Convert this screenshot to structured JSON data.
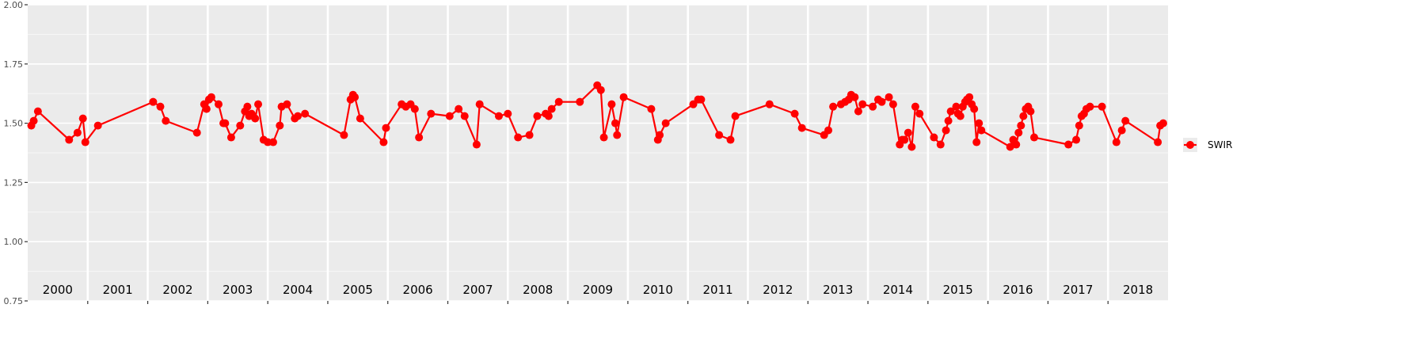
{
  "chart_data": {
    "type": "line",
    "xlabel": "",
    "ylabel": "",
    "ylim": [
      0.75,
      2.0
    ],
    "yticks": [
      "0.75",
      "1.00",
      "1.25",
      "1.50",
      "1.75",
      "2.00"
    ],
    "xlim": [
      2000.0,
      2019.0
    ],
    "grid": true,
    "legend_position": "right",
    "years": [
      "2000",
      "2001",
      "2002",
      "2003",
      "2004",
      "2005",
      "2006",
      "2007",
      "2008",
      "2009",
      "2010",
      "2011",
      "2012",
      "2013",
      "2014",
      "2015",
      "2016",
      "2017",
      "2018"
    ],
    "series": [
      {
        "name": "SWIR",
        "color": "#ff0000",
        "x": [
          2000.06,
          2000.1,
          2000.17,
          2000.69,
          2000.83,
          2000.92,
          2000.96,
          2001.17,
          2002.09,
          2002.21,
          2002.3,
          2002.82,
          2002.94,
          2002.98,
          2003.02,
          2003.06,
          2003.18,
          2003.26,
          2003.29,
          2003.39,
          2003.54,
          2003.62,
          2003.66,
          2003.69,
          2003.73,
          2003.79,
          2003.84,
          2003.93,
          2004.0,
          2004.09,
          2004.2,
          2004.23,
          2004.32,
          2004.45,
          2004.5,
          2004.62,
          2005.27,
          2005.38,
          2005.42,
          2005.45,
          2005.54,
          2005.93,
          2005.97,
          2006.23,
          2006.3,
          2006.38,
          2006.45,
          2006.52,
          2006.72,
          2007.03,
          2007.18,
          2007.28,
          2007.48,
          2007.53,
          2007.85,
          2008.0,
          2008.17,
          2008.36,
          2008.49,
          2008.63,
          2008.68,
          2008.73,
          2008.85,
          2009.2,
          2009.49,
          2009.55,
          2009.6,
          2009.73,
          2009.79,
          2009.82,
          2009.93,
          2010.39,
          2010.5,
          2010.53,
          2010.63,
          2011.09,
          2011.17,
          2011.22,
          2011.52,
          2011.71,
          2011.79,
          2012.36,
          2012.78,
          2012.9,
          2013.27,
          2013.34,
          2013.42,
          2013.55,
          2013.62,
          2013.68,
          2013.72,
          2013.78,
          2013.84,
          2013.91,
          2014.08,
          2014.17,
          2014.23,
          2014.35,
          2014.42,
          2014.53,
          2014.57,
          2014.61,
          2014.67,
          2014.73,
          2014.79,
          2014.86,
          2015.1,
          2015.21,
          2015.3,
          2015.34,
          2015.38,
          2015.47,
          2015.5,
          2015.54,
          2015.58,
          2015.62,
          2015.65,
          2015.69,
          2015.73,
          2015.77,
          2015.81,
          2015.85,
          2015.89,
          2016.37,
          2016.42,
          2016.47,
          2016.51,
          2016.55,
          2016.59,
          2016.63,
          2016.67,
          2016.71,
          2016.77,
          2017.34,
          2017.47,
          2017.52,
          2017.56,
          2017.6,
          2017.64,
          2017.7,
          2017.9,
          2018.14,
          2018.23,
          2018.29,
          2018.83,
          2018.87,
          2018.92
        ],
        "y": [
          1.49,
          1.51,
          1.55,
          1.43,
          1.46,
          1.52,
          1.42,
          1.49,
          1.59,
          1.57,
          1.51,
          1.46,
          1.58,
          1.56,
          1.6,
          1.61,
          1.58,
          1.5,
          1.5,
          1.44,
          1.49,
          1.55,
          1.57,
          1.53,
          1.54,
          1.52,
          1.58,
          1.43,
          1.42,
          1.42,
          1.49,
          1.57,
          1.58,
          1.52,
          1.53,
          1.54,
          1.45,
          1.6,
          1.62,
          1.61,
          1.52,
          1.42,
          1.48,
          1.58,
          1.57,
          1.58,
          1.56,
          1.44,
          1.54,
          1.53,
          1.56,
          1.53,
          1.41,
          1.58,
          1.53,
          1.54,
          1.44,
          1.45,
          1.53,
          1.54,
          1.53,
          1.56,
          1.59,
          1.59,
          1.66,
          1.64,
          1.44,
          1.58,
          1.5,
          1.45,
          1.61,
          1.56,
          1.43,
          1.45,
          1.5,
          1.58,
          1.6,
          1.6,
          1.45,
          1.43,
          1.53,
          1.58,
          1.54,
          1.48,
          1.45,
          1.47,
          1.57,
          1.58,
          1.59,
          1.6,
          1.62,
          1.61,
          1.55,
          1.58,
          1.57,
          1.6,
          1.59,
          1.61,
          1.58,
          1.41,
          1.43,
          1.43,
          1.46,
          1.4,
          1.57,
          1.54,
          1.44,
          1.41,
          1.47,
          1.51,
          1.55,
          1.57,
          1.54,
          1.53,
          1.57,
          1.59,
          1.6,
          1.61,
          1.58,
          1.56,
          1.42,
          1.5,
          1.47,
          1.4,
          1.43,
          1.41,
          1.46,
          1.49,
          1.53,
          1.56,
          1.57,
          1.55,
          1.44,
          1.41,
          1.43,
          1.49,
          1.53,
          1.54,
          1.56,
          1.57,
          1.57,
          1.42,
          1.47,
          1.51,
          1.42,
          1.49,
          1.5
        ],
        "_fix": "placeholder-removed"
      }
    ]
  }
}
